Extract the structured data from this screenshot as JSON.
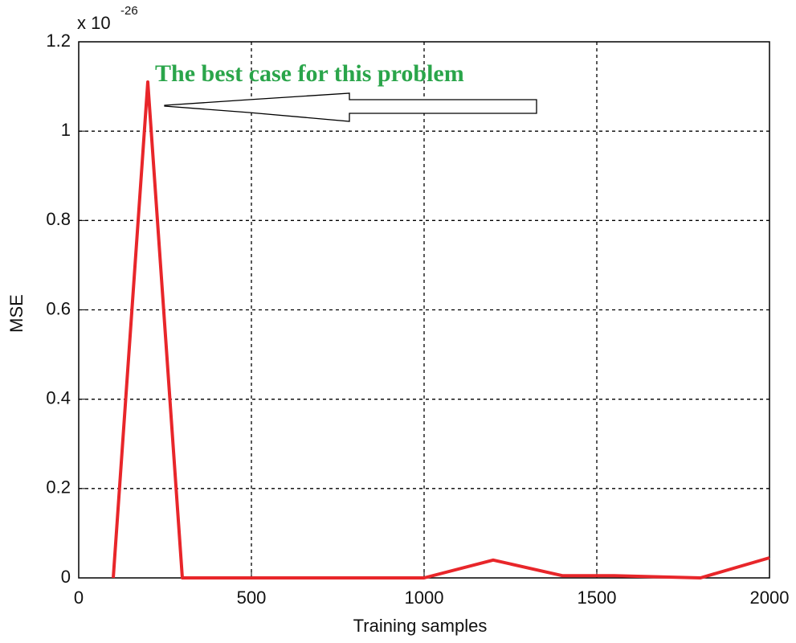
{
  "chart_data": {
    "type": "line",
    "annotation": "The best case for this problem",
    "xlabel": "Training samples",
    "ylabel": "MSE",
    "y_multiplier": {
      "base": "x 10",
      "exponent": "-26"
    },
    "x": [
      100,
      200,
      300,
      1000,
      1200,
      1400,
      1550,
      1800,
      2000
    ],
    "series": [
      {
        "color": "#e8262a",
        "values": [
          0,
          1.11,
          0,
          0,
          0.04,
          0.005,
          0.005,
          0,
          0.045
        ]
      }
    ],
    "xlim": [
      0,
      2000
    ],
    "xticks": [
      0,
      500,
      1000,
      1500,
      2000
    ],
    "ylim": [
      0,
      1.2
    ],
    "yticks": [
      0,
      0.2,
      0.4,
      0.6,
      0.8,
      1,
      1.2
    ],
    "grid": true
  }
}
